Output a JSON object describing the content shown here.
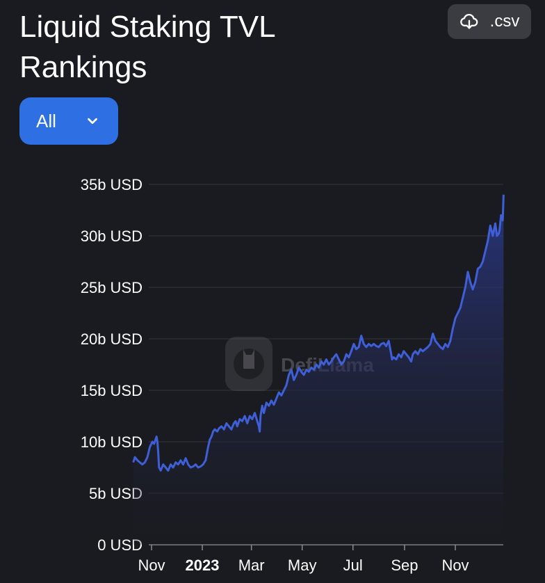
{
  "header": {
    "title": "Liquid Staking TVL Rankings",
    "csv_label": ".csv",
    "csv_icon": "cloud-download-icon",
    "filter_label": "All",
    "filter_icon": "chevron-down-icon"
  },
  "watermark": {
    "text": "DefiLlama"
  },
  "colors": {
    "background": "#1a1b20",
    "line": "#3f5fd8",
    "button_primary": "#2f6fe4",
    "button_secondary": "#3b3c42",
    "grid": "#34353b",
    "axis_text": "#ffffff"
  },
  "chart_data": {
    "type": "area",
    "title": "",
    "xlabel": "",
    "ylabel": "",
    "ylim": [
      0,
      35
    ],
    "y_unit": "b USD",
    "yticks": [
      0,
      5,
      10,
      15,
      20,
      25,
      30,
      35
    ],
    "ytick_labels": [
      "0 USD",
      "5b USD",
      "10b USD",
      "15b USD",
      "20b USD",
      "25b USD",
      "30b USD",
      "35b USD"
    ],
    "xticks": [
      {
        "date": "2022-11-01",
        "label": "Nov",
        "bold": false
      },
      {
        "date": "2023-01-01",
        "label": "2023",
        "bold": true
      },
      {
        "date": "2023-03-01",
        "label": "Mar",
        "bold": false
      },
      {
        "date": "2023-05-01",
        "label": "May",
        "bold": false
      },
      {
        "date": "2023-07-01",
        "label": "Jul",
        "bold": false
      },
      {
        "date": "2023-09-01",
        "label": "Sep",
        "bold": false
      },
      {
        "date": "2023-11-01",
        "label": "Nov",
        "bold": false
      }
    ],
    "grid": true,
    "legend": "none",
    "series": [
      {
        "x": [
          "2022-10-10",
          "2022-10-12",
          "2022-10-15",
          "2022-10-18",
          "2022-10-21",
          "2022-10-24",
          "2022-10-27",
          "2022-10-30",
          "2022-11-02",
          "2022-11-04",
          "2022-11-07",
          "2022-11-08",
          "2022-11-09",
          "2022-11-10",
          "2022-11-12",
          "2022-11-15",
          "2022-11-18",
          "2022-11-21",
          "2022-11-24",
          "2022-11-27",
          "2022-11-30",
          "2022-12-03",
          "2022-12-06",
          "2022-12-09",
          "2022-12-12",
          "2022-12-15",
          "2022-12-18",
          "2022-12-21",
          "2022-12-24",
          "2022-12-27",
          "2022-12-30",
          "2023-01-02",
          "2023-01-05",
          "2023-01-08",
          "2023-01-10",
          "2023-01-12",
          "2023-01-14",
          "2023-01-16",
          "2023-01-19",
          "2023-01-21",
          "2023-01-24",
          "2023-01-27",
          "2023-01-30",
          "2023-02-02",
          "2023-02-05",
          "2023-02-08",
          "2023-02-10",
          "2023-02-12",
          "2023-02-15",
          "2023-02-18",
          "2023-02-21",
          "2023-02-24",
          "2023-02-27",
          "2023-03-02",
          "2023-03-05",
          "2023-03-08",
          "2023-03-10",
          "2023-03-11",
          "2023-03-12",
          "2023-03-14",
          "2023-03-16",
          "2023-03-19",
          "2023-03-22",
          "2023-03-25",
          "2023-03-28",
          "2023-03-31",
          "2023-04-03",
          "2023-04-06",
          "2023-04-09",
          "2023-04-12",
          "2023-04-15",
          "2023-04-18",
          "2023-04-21",
          "2023-04-24",
          "2023-04-27",
          "2023-04-30",
          "2023-05-03",
          "2023-05-06",
          "2023-05-09",
          "2023-05-12",
          "2023-05-15",
          "2023-05-18",
          "2023-05-21",
          "2023-05-24",
          "2023-05-27",
          "2023-05-30",
          "2023-06-02",
          "2023-06-05",
          "2023-06-08",
          "2023-06-11",
          "2023-06-14",
          "2023-06-17",
          "2023-06-20",
          "2023-06-23",
          "2023-06-26",
          "2023-06-29",
          "2023-07-02",
          "2023-07-05",
          "2023-07-08",
          "2023-07-11",
          "2023-07-14",
          "2023-07-17",
          "2023-07-20",
          "2023-07-23",
          "2023-07-26",
          "2023-07-29",
          "2023-08-01",
          "2023-08-04",
          "2023-08-07",
          "2023-08-10",
          "2023-08-13",
          "2023-08-16",
          "2023-08-17",
          "2023-08-19",
          "2023-08-22",
          "2023-08-25",
          "2023-08-28",
          "2023-08-31",
          "2023-09-03",
          "2023-09-06",
          "2023-09-09",
          "2023-09-11",
          "2023-09-14",
          "2023-09-17",
          "2023-09-20",
          "2023-09-23",
          "2023-09-26",
          "2023-09-29",
          "2023-10-02",
          "2023-10-05",
          "2023-10-08",
          "2023-10-11",
          "2023-10-14",
          "2023-10-17",
          "2023-10-20",
          "2023-10-23",
          "2023-10-26",
          "2023-10-29",
          "2023-11-01",
          "2023-11-04",
          "2023-11-07",
          "2023-11-10",
          "2023-11-13",
          "2023-11-16",
          "2023-11-19",
          "2023-11-22",
          "2023-11-25",
          "2023-11-28",
          "2023-12-01",
          "2023-12-04",
          "2023-12-07",
          "2023-12-10",
          "2023-12-13",
          "2023-12-16",
          "2023-12-19",
          "2023-12-21",
          "2023-12-23",
          "2023-12-24",
          "2023-12-26",
          "2023-12-28",
          "2023-12-29"
        ],
        "values": [
          8.0,
          8.5,
          8.2,
          8.0,
          7.8,
          8.0,
          8.5,
          9.5,
          10.0,
          9.8,
          10.5,
          10.0,
          9.0,
          7.5,
          7.2,
          7.8,
          7.5,
          7.2,
          7.8,
          7.5,
          8.0,
          7.8,
          8.2,
          7.8,
          8.4,
          7.8,
          7.5,
          7.6,
          7.8,
          7.5,
          7.6,
          7.8,
          8.2,
          9.5,
          10.2,
          10.5,
          11.0,
          11.2,
          11.0,
          11.3,
          11.5,
          11.2,
          11.8,
          11.5,
          11.2,
          11.8,
          12.0,
          11.5,
          12.2,
          12.0,
          12.5,
          11.8,
          12.5,
          12.2,
          12.8,
          12.0,
          11.5,
          11.0,
          12.5,
          13.5,
          12.8,
          13.8,
          13.5,
          14.0,
          13.6,
          14.2,
          14.8,
          14.5,
          15.0,
          15.5,
          16.5,
          17.0,
          16.0,
          16.5,
          17.2,
          16.8,
          16.5,
          17.0,
          16.8,
          17.2,
          17.0,
          17.5,
          17.2,
          17.8,
          17.5,
          18.0,
          17.5,
          17.8,
          18.2,
          18.5,
          18.0,
          17.5,
          17.8,
          18.5,
          18.2,
          18.8,
          19.5,
          19.0,
          19.2,
          20.3,
          19.5,
          19.2,
          19.5,
          19.3,
          19.5,
          19.3,
          19.2,
          19.5,
          19.6,
          19.3,
          19.8,
          18.5,
          18.0,
          18.2,
          18.0,
          18.5,
          18.2,
          18.8,
          18.5,
          18.2,
          17.8,
          18.5,
          18.8,
          18.5,
          19.0,
          18.8,
          19.0,
          19.2,
          19.5,
          20.5,
          19.8,
          19.5,
          19.2,
          19.0,
          19.5,
          19.2,
          19.8,
          21.0,
          22.0,
          22.5,
          23.0,
          24.0,
          25.0,
          26.5,
          25.5,
          24.8,
          25.5,
          26.8,
          27.0,
          27.5,
          28.5,
          29.5,
          31.0,
          30.0,
          31.2,
          30.0,
          30.2,
          30.5,
          32.0,
          31.5,
          34.0
        ]
      }
    ]
  }
}
